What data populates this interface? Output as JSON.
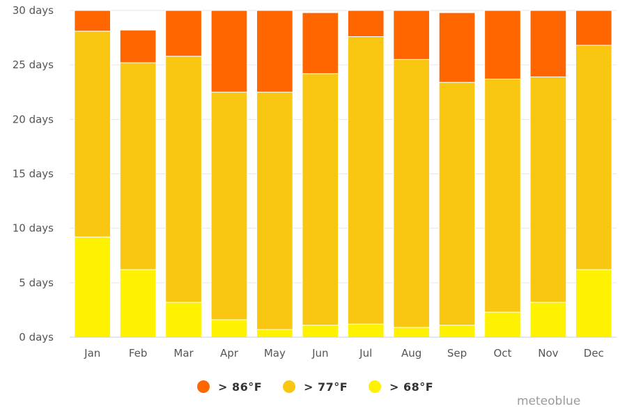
{
  "chart_data": {
    "type": "bar",
    "stacked": true,
    "categories": [
      "Jan",
      "Feb",
      "Mar",
      "Apr",
      "May",
      "Jun",
      "Jul",
      "Aug",
      "Sep",
      "Oct",
      "Nov",
      "Dec"
    ],
    "series": [
      {
        "name": "> 68°F",
        "color": "#fff200",
        "values": [
          9.2,
          6.2,
          3.2,
          1.6,
          0.7,
          1.1,
          1.2,
          0.9,
          1.1,
          2.3,
          3.2,
          6.2
        ]
      },
      {
        "name": "> 77°F",
        "color": "#f9c712",
        "values": [
          18.9,
          19.0,
          22.6,
          20.9,
          21.8,
          23.1,
          26.4,
          24.6,
          22.3,
          21.4,
          20.7,
          20.6
        ]
      },
      {
        "name": "> 86°F",
        "color": "#ff6600",
        "values": [
          1.9,
          3.0,
          4.2,
          7.5,
          7.5,
          5.6,
          2.4,
          4.5,
          6.4,
          6.3,
          6.1,
          3.2
        ]
      }
    ],
    "y_ticks": [
      "0 days",
      "5 days",
      "10 days",
      "15 days",
      "20 days",
      "25 days",
      "30 days"
    ],
    "ylim": [
      0,
      30
    ],
    "grid": true,
    "legend_position": "bottom-center"
  },
  "legend": {
    "items": [
      {
        "label": "> 86°F",
        "color": "#ff6600"
      },
      {
        "label": "> 77°F",
        "color": "#f9c712"
      },
      {
        "label": "> 68°F",
        "color": "#fff200"
      }
    ]
  },
  "credit": "meteoblue"
}
